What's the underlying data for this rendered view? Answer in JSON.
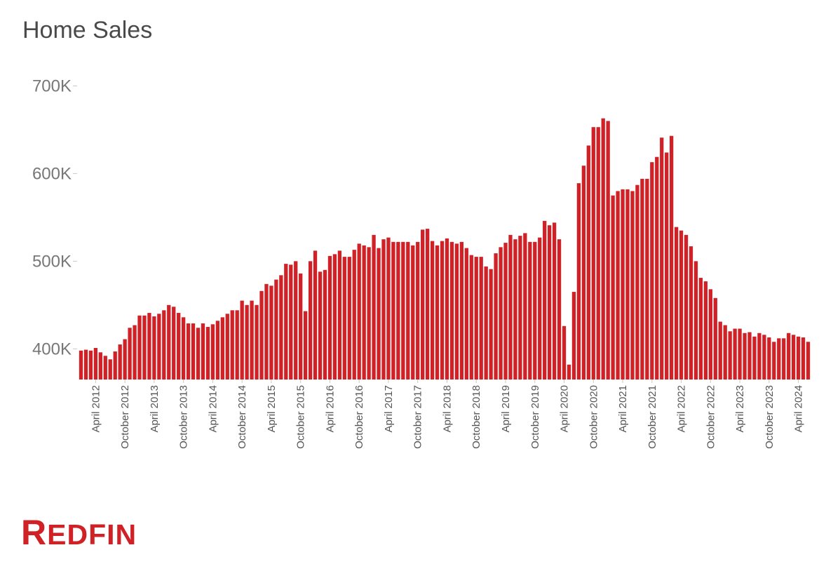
{
  "header": {
    "title": "Home Sales"
  },
  "brand": {
    "logo_text": "Redfin",
    "color": "#cf2126"
  },
  "chart_data": {
    "type": "bar",
    "title": "Home Sales",
    "xlabel": "",
    "ylabel": "",
    "ylim": [
      365000,
      710000
    ],
    "yticks": [
      400000,
      500000,
      600000,
      700000
    ],
    "ytick_labels": [
      "400K",
      "500K",
      "600K",
      "700K"
    ],
    "x_tick_labels": [
      "April 2012",
      "October 2012",
      "April 2013",
      "October 2013",
      "April 2014",
      "October 2014",
      "April 2015",
      "October 2015",
      "April 2016",
      "October 2016",
      "April 2017",
      "October 2017",
      "April 2018",
      "October 2018",
      "April 2019",
      "October 2019",
      "April 2020",
      "October 2020",
      "April 2021",
      "October 2021",
      "April 2022",
      "October 2022",
      "April 2023",
      "October 2023",
      "April 2024"
    ],
    "first_month": "2012-01",
    "bar_color": "#cf2126",
    "grid": false,
    "values": [
      398000,
      399000,
      398000,
      401000,
      396000,
      392000,
      388000,
      397000,
      405000,
      411000,
      424000,
      427000,
      438000,
      438000,
      441000,
      437000,
      440000,
      444000,
      450000,
      448000,
      441000,
      436000,
      429000,
      429000,
      424000,
      429000,
      425000,
      428000,
      432000,
      436000,
      440000,
      444000,
      444000,
      455000,
      450000,
      455000,
      450000,
      466000,
      474000,
      472000,
      479000,
      484000,
      497000,
      496000,
      500000,
      486000,
      443000,
      500000,
      512000,
      488000,
      490000,
      506000,
      508000,
      512000,
      505000,
      505000,
      513000,
      520000,
      518000,
      516000,
      530000,
      515000,
      525000,
      527000,
      522000,
      522000,
      522000,
      522000,
      518000,
      522000,
      536000,
      537000,
      523000,
      518000,
      523000,
      526000,
      522000,
      520000,
      522000,
      515000,
      507000,
      505000,
      505000,
      494000,
      491000,
      509000,
      516000,
      521000,
      530000,
      525000,
      529000,
      532000,
      522000,
      522000,
      527000,
      546000,
      541000,
      544000,
      525000,
      426000,
      382000,
      465000,
      589000,
      609000,
      632000,
      653000,
      653000,
      663000,
      660000,
      575000,
      580000,
      582000,
      582000,
      580000,
      587000,
      594000,
      594000,
      613000,
      619000,
      641000,
      624000,
      643000,
      539000,
      535000,
      530000,
      517000,
      500000,
      481000,
      477000,
      468000,
      458000,
      431000,
      427000,
      420000,
      423000,
      423000,
      418000,
      419000,
      414000,
      418000,
      416000,
      413000,
      408000,
      412000,
      412000,
      418000,
      416000,
      414000,
      413000,
      408000
    ]
  }
}
